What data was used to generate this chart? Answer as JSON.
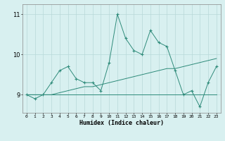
{
  "xlabel": "Humidex (Indice chaleur)",
  "x": [
    0,
    1,
    2,
    3,
    4,
    5,
    6,
    7,
    8,
    9,
    10,
    11,
    12,
    13,
    14,
    15,
    16,
    17,
    18,
    19,
    20,
    21,
    22,
    23
  ],
  "y_main": [
    9.0,
    8.9,
    9.0,
    9.3,
    9.6,
    9.7,
    9.4,
    9.3,
    9.3,
    9.1,
    9.8,
    11.0,
    10.4,
    10.1,
    10.0,
    10.6,
    10.3,
    10.2,
    9.6,
    9.0,
    9.1,
    8.7,
    9.3,
    9.7
  ],
  "y_trend": [
    9.0,
    9.0,
    9.0,
    9.0,
    9.05,
    9.1,
    9.15,
    9.2,
    9.2,
    9.25,
    9.3,
    9.35,
    9.4,
    9.45,
    9.5,
    9.55,
    9.6,
    9.65,
    9.65,
    9.7,
    9.75,
    9.8,
    9.85,
    9.9
  ],
  "y_flat": [
    9.0,
    9.0,
    9.0,
    9.0,
    9.0,
    9.0,
    9.0,
    9.0,
    9.0,
    9.0,
    9.0,
    9.0,
    9.0,
    9.0,
    9.0,
    9.0,
    9.0,
    9.0,
    9.0,
    9.0,
    9.0,
    9.0,
    9.0,
    9.0
  ],
  "line_color": "#2e8b7a",
  "bg_color": "#d8f0f0",
  "grid_color": "#b8d8d8",
  "ylim": [
    8.55,
    11.25
  ],
  "yticks": [
    9,
    10,
    11
  ],
  "xlim": [
    -0.5,
    23.5
  ]
}
